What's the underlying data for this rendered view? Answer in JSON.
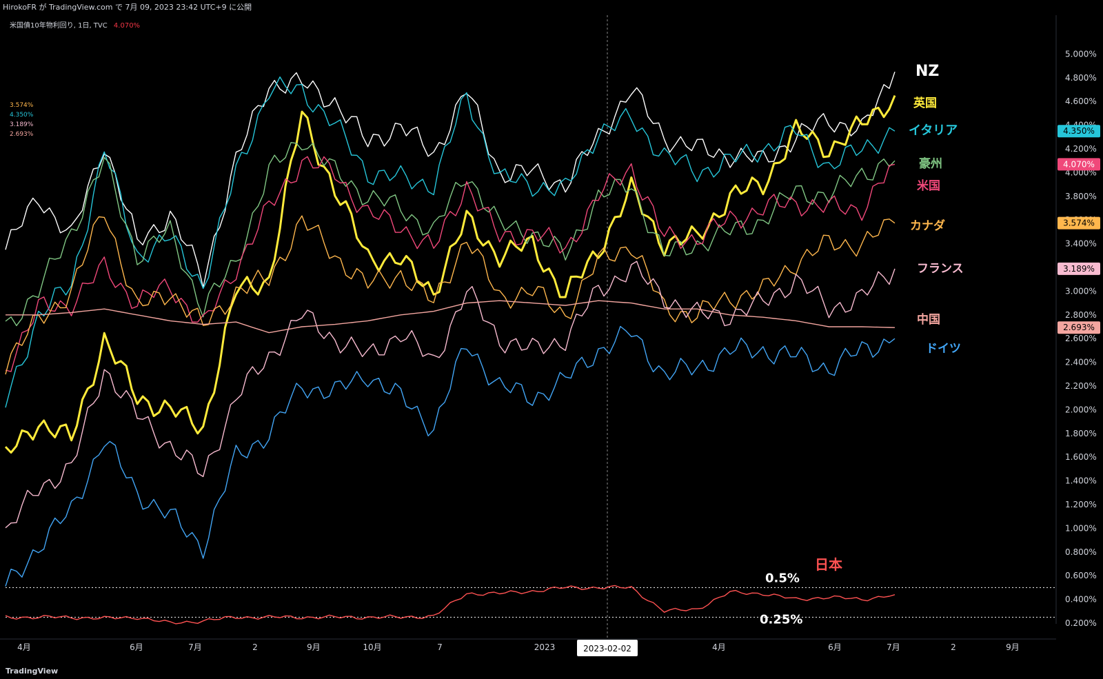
{
  "header": {
    "publish_line": "HirokoFR が TradingView.com で 7月 09, 2023 23:42 UTC+9 に公開",
    "symbol_line": "米国債10年物利回り, 1日, TVC",
    "current_value": "4.070%"
  },
  "legend_values": [
    "3.574%",
    "4.350%",
    "3.189%",
    "2.693%"
  ],
  "footer": {
    "brand": "TradingView"
  },
  "crosshair_label": "2023-02-02",
  "annotations": {
    "level_high": "0.5%",
    "level_low": "0.25%"
  },
  "colors": {
    "NZ": "#ffffff",
    "英国": "#ffeb3b",
    "イタリア": "#26c6da",
    "豪州": "#81c784",
    "米国": "#f0487a",
    "カナダ": "#ffb74d",
    "フランス": "#f8bbd0",
    "中国": "#f4a6a0",
    "ドイツ": "#42a5f5",
    "日本": "#ff5252"
  },
  "chart_data": {
    "type": "line",
    "x_ticks": [
      "4月",
      "6月",
      "7月",
      "2",
      "9月",
      "10月",
      "7",
      "2023",
      "4月",
      "6月",
      "7月",
      "2",
      "9月"
    ],
    "y_ticks": [
      "0.200%",
      "0.400%",
      "0.600%",
      "0.800%",
      "1.000%",
      "1.200%",
      "1.400%",
      "1.600%",
      "1.800%",
      "2.000%",
      "2.200%",
      "2.400%",
      "2.600%",
      "2.800%",
      "3.000%",
      "3.200%",
      "3.400%",
      "3.600%",
      "3.800%",
      "4.000%",
      "4.200%",
      "4.400%",
      "4.600%",
      "4.800%",
      "5.000%"
    ],
    "ylim": [
      0.1,
      5.2
    ],
    "x_anchor_labels": [
      "4月",
      "6月",
      "7月",
      "2",
      "9月",
      "10月",
      "7",
      "2023",
      "4月",
      "6月",
      "7月"
    ],
    "price_tags": [
      {
        "value": "4.350%",
        "series": "イタリア"
      },
      {
        "value": "4.070%",
        "series": "米国"
      },
      {
        "value": "3.574%",
        "series": "カナダ"
      },
      {
        "value": "3.189%",
        "series": "フランス"
      },
      {
        "value": "2.693%",
        "series": "中国"
      }
    ],
    "series": [
      {
        "name": "NZ",
        "values": [
          3.35,
          3.8,
          3.45,
          4.25,
          3.4,
          3.65,
          3.1,
          4.1,
          4.75,
          4.75,
          4.6,
          4.25,
          4.4,
          4.15,
          4.7,
          4.0,
          4.0,
          3.9,
          4.3,
          4.7,
          4.3,
          4.2,
          4.15,
          4.1,
          4.3,
          4.45,
          4.35,
          4.85
        ]
      },
      {
        "name": "英国",
        "values": [
          1.6,
          1.9,
          1.75,
          2.6,
          2.1,
          2.0,
          1.85,
          3.0,
          3.1,
          4.5,
          3.85,
          3.3,
          3.25,
          3.0,
          3.6,
          3.3,
          3.4,
          2.95,
          3.35,
          3.85,
          3.4,
          3.45,
          3.8,
          3.9,
          4.35,
          4.2,
          4.4,
          4.65
        ]
      },
      {
        "name": "イタリア",
        "values": [
          2.05,
          2.8,
          3.05,
          4.2,
          3.3,
          3.45,
          3.05,
          4.0,
          4.7,
          4.7,
          4.4,
          4.0,
          3.95,
          3.9,
          4.65,
          3.95,
          3.9,
          3.85,
          4.35,
          4.45,
          4.15,
          4.0,
          4.1,
          4.2,
          4.35,
          4.05,
          4.2,
          4.35
        ]
      },
      {
        "name": "豪州",
        "values": [
          2.7,
          3.0,
          3.5,
          4.1,
          3.3,
          3.5,
          2.85,
          3.25,
          4.0,
          4.3,
          4.0,
          3.8,
          3.7,
          3.5,
          4.0,
          3.55,
          3.5,
          3.3,
          3.8,
          3.9,
          3.3,
          3.4,
          3.5,
          3.6,
          3.85,
          3.8,
          4.0,
          4.1
        ]
      },
      {
        "name": "米国",
        "values": [
          2.35,
          2.85,
          2.9,
          3.2,
          2.9,
          3.05,
          2.7,
          3.2,
          3.7,
          4.1,
          4.0,
          3.65,
          3.55,
          3.35,
          3.9,
          3.45,
          3.5,
          3.35,
          3.8,
          4.05,
          3.45,
          3.45,
          3.6,
          3.7,
          3.75,
          3.7,
          3.7,
          4.07
        ]
      },
      {
        "name": "カナダ",
        "values": [
          2.4,
          2.75,
          3.0,
          3.7,
          2.85,
          3.0,
          2.7,
          3.0,
          3.1,
          3.6,
          3.3,
          3.05,
          3.15,
          2.9,
          3.45,
          2.95,
          3.0,
          2.8,
          3.25,
          3.4,
          2.85,
          2.8,
          2.95,
          3.0,
          3.25,
          3.4,
          3.4,
          3.574
        ]
      },
      {
        "name": "フランス",
        "values": [
          0.95,
          1.35,
          1.5,
          2.35,
          1.95,
          1.7,
          1.45,
          2.1,
          2.45,
          2.8,
          2.6,
          2.45,
          2.65,
          2.4,
          3.0,
          2.6,
          2.5,
          2.6,
          3.0,
          3.2,
          2.95,
          2.8,
          2.8,
          2.9,
          3.1,
          2.85,
          2.95,
          3.189
        ]
      },
      {
        "name": "中国",
        "values": [
          2.8,
          2.8,
          2.82,
          2.85,
          2.8,
          2.75,
          2.72,
          2.74,
          2.65,
          2.7,
          2.72,
          2.75,
          2.8,
          2.83,
          2.9,
          2.92,
          2.9,
          2.88,
          2.92,
          2.9,
          2.85,
          2.85,
          2.8,
          2.78,
          2.75,
          2.7,
          2.7,
          2.693
        ]
      },
      {
        "name": "ドイツ",
        "values": [
          0.5,
          0.85,
          1.15,
          1.75,
          1.3,
          1.1,
          0.85,
          1.6,
          1.8,
          2.2,
          2.15,
          2.3,
          2.1,
          1.85,
          2.55,
          2.2,
          2.1,
          2.25,
          2.5,
          2.65,
          2.3,
          2.35,
          2.5,
          2.5,
          2.45,
          2.35,
          2.5,
          2.6
        ]
      },
      {
        "name": "日本",
        "values": [
          0.25,
          0.25,
          0.25,
          0.24,
          0.25,
          0.2,
          0.22,
          0.25,
          0.25,
          0.25,
          0.25,
          0.25,
          0.25,
          0.26,
          0.45,
          0.45,
          0.47,
          0.5,
          0.5,
          0.5,
          0.3,
          0.32,
          0.46,
          0.45,
          0.4,
          0.42,
          0.4,
          0.44
        ]
      }
    ]
  }
}
